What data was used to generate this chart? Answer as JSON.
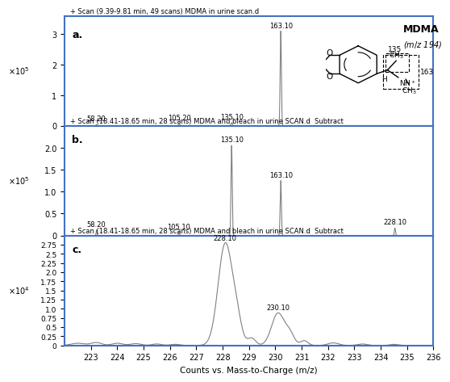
{
  "panel_a": {
    "title": "+ Scan (9.39-9.81 min, 49 scans) MDMA in urine scan.d",
    "label": "a.",
    "peaks": [
      {
        "mz": 58.2,
        "intensity": 0.04,
        "label": "58.20"
      },
      {
        "mz": 105.2,
        "intensity": 0.06,
        "label": "105.20"
      },
      {
        "mz": 135.1,
        "intensity": 0.1,
        "label": "135.10"
      },
      {
        "mz": 163.1,
        "intensity": 3.1,
        "label": "163.10"
      }
    ],
    "xlim": [
      40,
      250
    ],
    "ylim": [
      0,
      3.6
    ],
    "yticks": [
      0,
      1,
      2,
      3
    ],
    "scale": "×10⁵"
  },
  "panel_b": {
    "title": "+ Scan (18.41-18.65 min, 28 scans) MDMA and bleach in urine SCAN.d  Subtract",
    "label": "b.",
    "peaks": [
      {
        "mz": 58.2,
        "intensity": 0.13,
        "label": "58.20"
      },
      {
        "mz": 105.1,
        "intensity": 0.07,
        "label": "105.10"
      },
      {
        "mz": 135.1,
        "intensity": 2.05,
        "label": "135.10"
      },
      {
        "mz": 163.1,
        "intensity": 1.25,
        "label": "163.10"
      },
      {
        "mz": 228.1,
        "intensity": 0.17,
        "label": "228.10"
      }
    ],
    "xlim": [
      40,
      250
    ],
    "ylim": [
      0,
      2.5
    ],
    "yticks": [
      0,
      0.5,
      1.0,
      1.5,
      2.0
    ],
    "scale": "×10⁵"
  },
  "panel_c": {
    "title": "+ Scan (18.41-18.65 min, 28 scans) MDMA and bleach in urine SCAN.d  Subtract",
    "label": "c.",
    "xlim": [
      222,
      236
    ],
    "ylim": [
      0,
      3.0
    ],
    "yticks": [
      0,
      0.25,
      0.5,
      0.75,
      1.0,
      1.25,
      1.5,
      1.75,
      2.0,
      2.25,
      2.5,
      2.75
    ],
    "scale": "×10⁴",
    "peak_228_label": "228.10",
    "peak_230_label": "230.10",
    "peak_228_mz": 228.1,
    "peak_228_int": 2.78,
    "peak_230_mz": 230.1,
    "peak_230_int": 0.88
  },
  "xlabel": "Counts vs. Mass-to-Charge (m/z)",
  "border_color": "#4472C4",
  "line_color": "#808080",
  "background_color": "#ffffff"
}
